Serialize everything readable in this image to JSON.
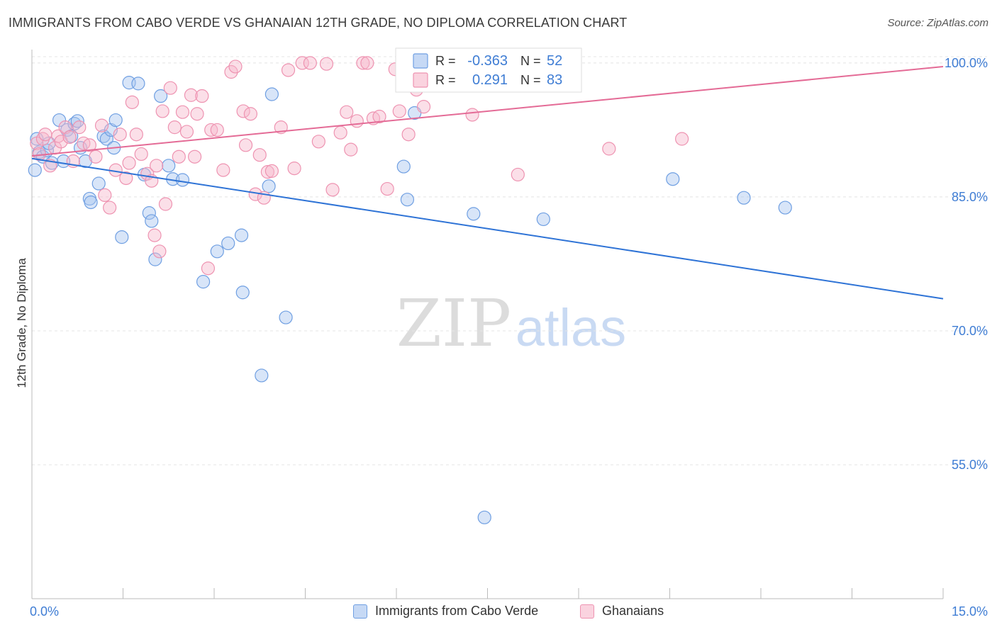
{
  "title": "IMMIGRANTS FROM CABO VERDE VS GHANAIAN 12TH GRADE, NO DIPLOMA CORRELATION CHART",
  "source": "Source: ZipAtlas.com",
  "watermark": {
    "zip": "ZIP",
    "atlas": "atlas"
  },
  "colors": {
    "blue_fill": "#a9c6f0",
    "blue_stroke": "#6f9fe2",
    "blue_line": "#2e73d6",
    "pink_fill": "#f6b9cc",
    "pink_stroke": "#ee93b1",
    "pink_line": "#e46b96",
    "axis_text": "#3f7dd4",
    "grid": "#e4e4e4"
  },
  "legend_box": {
    "rows": [
      {
        "r_label": "R =",
        "r_value": "-0.363",
        "n_label": "N =",
        "n_value": "52",
        "series": "blue"
      },
      {
        "r_label": "R =",
        "r_value": "0.291",
        "n_label": "N =",
        "n_value": "83",
        "series": "pink"
      }
    ]
  },
  "chart_data": {
    "type": "scatter",
    "title": "IMMIGRANTS FROM CABO VERDE VS GHANAIAN 12TH GRADE, NO DIPLOMA CORRELATION CHART",
    "xlabel": "",
    "ylabel": "12th Grade, No Diploma",
    "xlim": [
      0,
      15
    ],
    "ylim": [
      40,
      101.5
    ],
    "x_tick_labels": [
      "0.0%",
      "15.0%"
    ],
    "y_ticks": [
      55,
      70,
      85,
      100
    ],
    "y_tick_labels": [
      "55.0%",
      "70.0%",
      "85.0%",
      "100.0%"
    ],
    "grid": true,
    "legend_position": "bottom",
    "series": [
      {
        "name": "Immigrants from Cabo Verde",
        "color": "blue",
        "r": -0.363,
        "n": 52,
        "trend": {
          "x": [
            0,
            15
          ],
          "y": [
            89.3,
            73.6
          ]
        },
        "points": [
          [
            0.05,
            88.0
          ],
          [
            0.08,
            91.5
          ],
          [
            0.12,
            90.0
          ],
          [
            0.18,
            89.5
          ],
          [
            0.25,
            90.2
          ],
          [
            0.28,
            91.0
          ],
          [
            0.33,
            88.8
          ],
          [
            0.45,
            93.6
          ],
          [
            0.52,
            89.0
          ],
          [
            0.58,
            92.5
          ],
          [
            0.65,
            91.8
          ],
          [
            0.7,
            93.2
          ],
          [
            0.75,
            93.5
          ],
          [
            0.8,
            90.5
          ],
          [
            0.88,
            89.0
          ],
          [
            0.95,
            84.8
          ],
          [
            0.97,
            84.4
          ],
          [
            1.1,
            86.5
          ],
          [
            1.18,
            91.8
          ],
          [
            1.23,
            91.5
          ],
          [
            1.3,
            92.5
          ],
          [
            1.35,
            90.5
          ],
          [
            1.38,
            93.6
          ],
          [
            1.48,
            80.5
          ],
          [
            1.6,
            97.8
          ],
          [
            1.75,
            97.7
          ],
          [
            1.85,
            87.5
          ],
          [
            1.93,
            83.2
          ],
          [
            1.97,
            82.3
          ],
          [
            2.03,
            78.0
          ],
          [
            2.12,
            96.3
          ],
          [
            2.25,
            88.5
          ],
          [
            2.32,
            87.0
          ],
          [
            2.48,
            86.9
          ],
          [
            2.82,
            75.5
          ],
          [
            3.05,
            78.9
          ],
          [
            3.23,
            79.8
          ],
          [
            3.45,
            80.7
          ],
          [
            3.47,
            74.3
          ],
          [
            3.78,
            65.0
          ],
          [
            3.9,
            86.2
          ],
          [
            3.95,
            96.5
          ],
          [
            4.18,
            71.5
          ],
          [
            6.12,
            88.4
          ],
          [
            6.18,
            84.7
          ],
          [
            6.3,
            94.4
          ],
          [
            7.27,
            83.1
          ],
          [
            7.45,
            49.1
          ],
          [
            8.42,
            82.5
          ],
          [
            10.55,
            87.0
          ],
          [
            11.72,
            84.9
          ],
          [
            12.4,
            83.8
          ]
        ]
      },
      {
        "name": "Ghanaians",
        "color": "pink",
        "r": 0.291,
        "n": 83,
        "trend": {
          "x": [
            0,
            15
          ],
          "y": [
            89.6,
            99.6
          ]
        },
        "points": [
          [
            0.08,
            91.0
          ],
          [
            0.12,
            89.8
          ],
          [
            0.18,
            91.5
          ],
          [
            0.22,
            92.0
          ],
          [
            0.3,
            88.5
          ],
          [
            0.38,
            90.5
          ],
          [
            0.43,
            91.8
          ],
          [
            0.48,
            91.2
          ],
          [
            0.55,
            92.8
          ],
          [
            0.62,
            91.7
          ],
          [
            0.68,
            89.0
          ],
          [
            0.78,
            92.8
          ],
          [
            0.85,
            91.0
          ],
          [
            0.95,
            90.8
          ],
          [
            1.05,
            89.5
          ],
          [
            1.15,
            93.0
          ],
          [
            1.2,
            85.2
          ],
          [
            1.28,
            83.8
          ],
          [
            1.38,
            88.0
          ],
          [
            1.45,
            92.0
          ],
          [
            1.55,
            87.1
          ],
          [
            1.6,
            88.8
          ],
          [
            1.65,
            95.6
          ],
          [
            1.72,
            92.0
          ],
          [
            1.8,
            89.8
          ],
          [
            1.9,
            87.6
          ],
          [
            1.97,
            86.8
          ],
          [
            2.02,
            80.7
          ],
          [
            2.05,
            88.5
          ],
          [
            2.1,
            78.9
          ],
          [
            2.15,
            94.6
          ],
          [
            2.2,
            84.2
          ],
          [
            2.28,
            97.2
          ],
          [
            2.35,
            92.8
          ],
          [
            2.42,
            89.5
          ],
          [
            2.48,
            94.5
          ],
          [
            2.55,
            92.3
          ],
          [
            2.62,
            96.4
          ],
          [
            2.68,
            89.5
          ],
          [
            2.72,
            94.3
          ],
          [
            2.8,
            96.3
          ],
          [
            2.9,
            77.0
          ],
          [
            2.95,
            92.5
          ],
          [
            3.05,
            92.5
          ],
          [
            3.15,
            88.0
          ],
          [
            3.28,
            99.0
          ],
          [
            3.35,
            99.6
          ],
          [
            3.48,
            94.6
          ],
          [
            3.52,
            90.8
          ],
          [
            3.6,
            94.3
          ],
          [
            3.68,
            85.3
          ],
          [
            3.75,
            89.7
          ],
          [
            3.82,
            84.9
          ],
          [
            3.88,
            87.8
          ],
          [
            3.95,
            87.9
          ],
          [
            4.1,
            92.8
          ],
          [
            4.22,
            99.2
          ],
          [
            4.32,
            88.2
          ],
          [
            4.45,
            100.0
          ],
          [
            4.58,
            100.0
          ],
          [
            4.72,
            91.2
          ],
          [
            4.85,
            99.9
          ],
          [
            4.95,
            85.8
          ],
          [
            5.08,
            92.2
          ],
          [
            5.18,
            94.5
          ],
          [
            5.25,
            90.3
          ],
          [
            5.35,
            93.5
          ],
          [
            5.45,
            100.0
          ],
          [
            5.52,
            100.0
          ],
          [
            5.62,
            93.8
          ],
          [
            5.72,
            94.0
          ],
          [
            5.85,
            85.9
          ],
          [
            5.98,
            99.3
          ],
          [
            6.05,
            94.6
          ],
          [
            6.2,
            92.0
          ],
          [
            6.33,
            97.0
          ],
          [
            6.45,
            95.1
          ],
          [
            6.62,
            100.0
          ],
          [
            6.88,
            100.0
          ],
          [
            7.25,
            94.2
          ],
          [
            8.0,
            87.5
          ],
          [
            9.5,
            90.4
          ],
          [
            10.7,
            91.5
          ]
        ]
      }
    ]
  }
}
